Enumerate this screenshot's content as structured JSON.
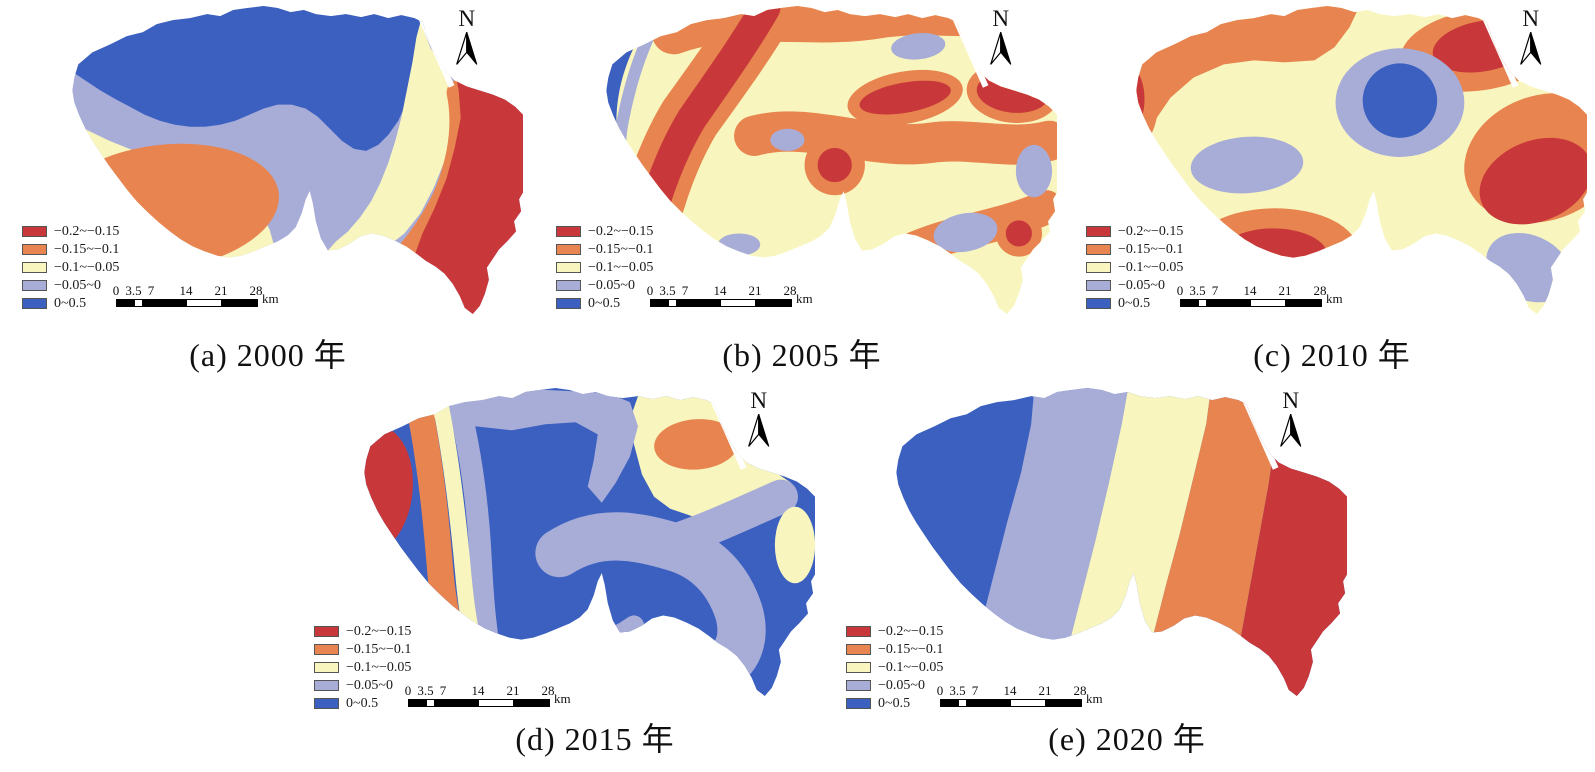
{
  "figure": {
    "type": "interpolated-surface-map-series",
    "background": "#ffffff",
    "description": "Five contour maps of the same study region for different years"
  },
  "north_arrow": {
    "label": "N"
  },
  "legend": {
    "classes": [
      {
        "label": "−0.2~−0.15",
        "color": "#c8383a"
      },
      {
        "label": "−0.15~−0.1",
        "color": "#e8844f"
      },
      {
        "label": "−0.1~−0.05",
        "color": "#f8f6be"
      },
      {
        "label": "−0.05~0",
        "color": "#a8add8"
      },
      {
        "label": "0~0.5",
        "color": "#3b60c0"
      }
    ]
  },
  "scalebar": {
    "tick_labels": [
      "0",
      "3.5",
      "7",
      "14",
      "21",
      "28"
    ],
    "unit": "km"
  },
  "panels": [
    {
      "id": "a",
      "caption": "(a) 2000 年"
    },
    {
      "id": "b",
      "caption": "(b) 2005 年"
    },
    {
      "id": "c",
      "caption": "(c) 2010 年"
    },
    {
      "id": "d",
      "caption": "(d) 2015 年"
    },
    {
      "id": "e",
      "caption": "(e) 2020 年"
    }
  ]
}
